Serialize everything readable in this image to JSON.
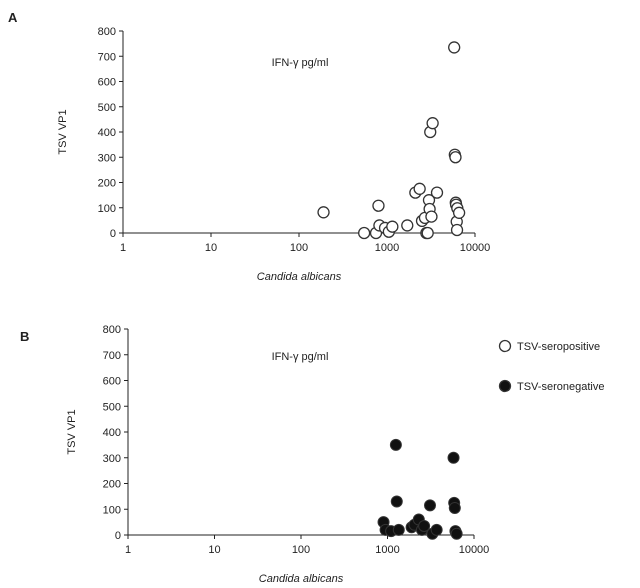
{
  "chart_data": [
    {
      "type": "scatter",
      "panel_label": "A",
      "annotation": "IFN-γ pg/ml",
      "xlabel": "Candida albicans",
      "ylabel": "TSV VP1",
      "x_scale": "log",
      "xlim": [
        1,
        10000
      ],
      "ylim": [
        0,
        800
      ],
      "x_ticks": [
        "1",
        "10",
        "100",
        "1000",
        "10000"
      ],
      "y_ticks": [
        "0",
        "100",
        "200",
        "300",
        "400",
        "500",
        "600",
        "700",
        "800"
      ],
      "grid": false,
      "series": [
        {
          "marker": "open-circle",
          "points": [
            [
              190,
              82
            ],
            [
              550,
              0
            ],
            [
              750,
              0
            ],
            [
              800,
              108
            ],
            [
              820,
              30
            ],
            [
              950,
              20
            ],
            [
              1050,
              5
            ],
            [
              1150,
              25
            ],
            [
              1700,
              30
            ],
            [
              2100,
              160
            ],
            [
              2350,
              175
            ],
            [
              2500,
              48
            ],
            [
              2700,
              60
            ],
            [
              2800,
              0
            ],
            [
              2900,
              0
            ],
            [
              3000,
              130
            ],
            [
              3050,
              95
            ],
            [
              3100,
              400
            ],
            [
              3200,
              65
            ],
            [
              3300,
              435
            ],
            [
              3700,
              160
            ],
            [
              5800,
              735
            ],
            [
              5900,
              310
            ],
            [
              6000,
              300
            ],
            [
              6050,
              120
            ],
            [
              6100,
              112
            ],
            [
              6200,
              45
            ],
            [
              6250,
              12
            ],
            [
              6300,
              98
            ],
            [
              6600,
              80
            ]
          ]
        }
      ]
    },
    {
      "type": "scatter",
      "panel_label": "B",
      "annotation": "IFN-γ pg/ml",
      "xlabel": "Candida albicans",
      "ylabel": "TSV VP1",
      "x_scale": "log",
      "xlim": [
        1,
        10000
      ],
      "ylim": [
        0,
        800
      ],
      "x_ticks": [
        "1",
        "10",
        "100",
        "1000",
        "10000"
      ],
      "y_ticks": [
        "0",
        "100",
        "200",
        "300",
        "400",
        "500",
        "600",
        "700",
        "800"
      ],
      "grid": false,
      "legend": {
        "position": "top-right",
        "entries": [
          {
            "label": "TSV-seropositive",
            "marker": "open-circle"
          },
          {
            "label": "TSV-seronegative",
            "marker": "filled-circle"
          }
        ]
      },
      "series": [
        {
          "name": "TSV-seronegative",
          "marker": "filled-circle",
          "points": [
            [
              900,
              50
            ],
            [
              950,
              20
            ],
            [
              1100,
              15
            ],
            [
              1250,
              350
            ],
            [
              1280,
              130
            ],
            [
              1350,
              20
            ],
            [
              1900,
              30
            ],
            [
              2050,
              40
            ],
            [
              2300,
              60
            ],
            [
              2500,
              20
            ],
            [
              2650,
              35
            ],
            [
              3100,
              115
            ],
            [
              3300,
              5
            ],
            [
              3700,
              20
            ],
            [
              5800,
              300
            ],
            [
              5900,
              125
            ],
            [
              6000,
              105
            ],
            [
              6100,
              15
            ],
            [
              6300,
              5
            ]
          ]
        }
      ]
    }
  ]
}
